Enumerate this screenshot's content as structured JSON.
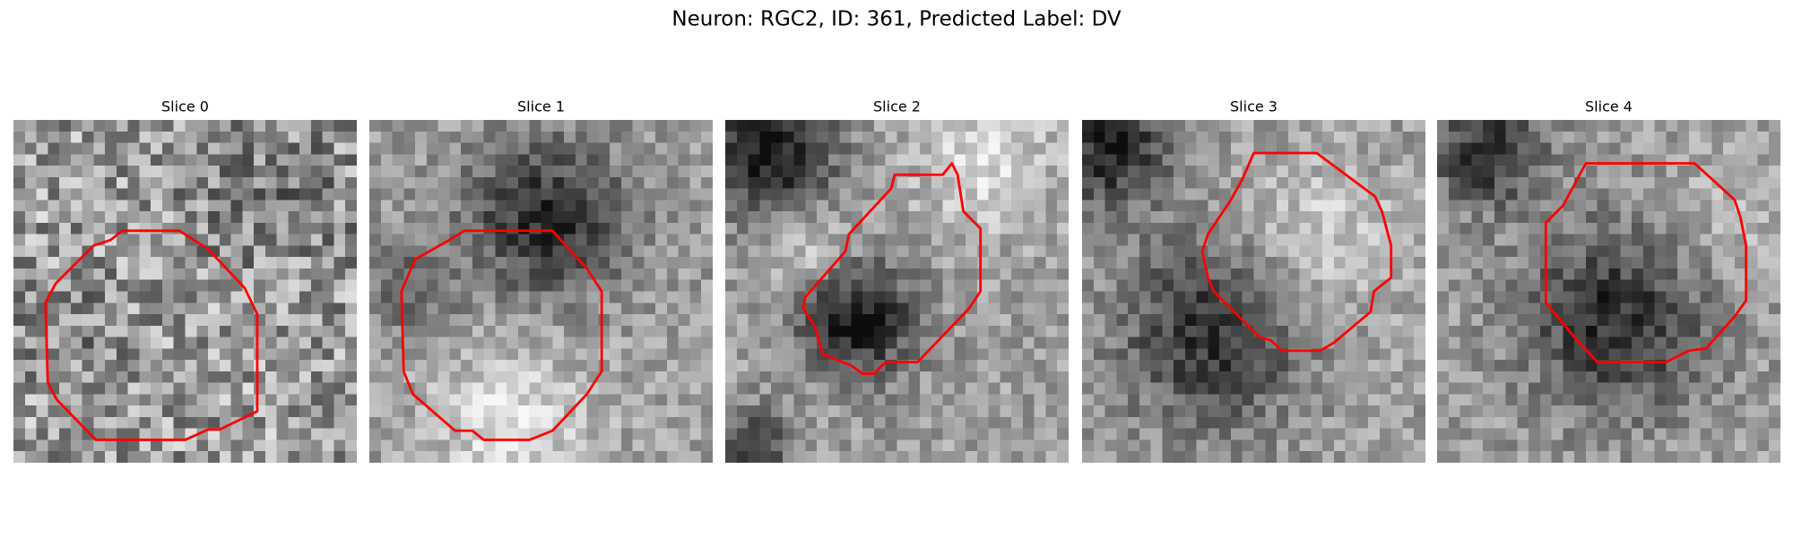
{
  "figure": {
    "title": "Neuron: RGC2, ID: 361, Predicted Label: DV",
    "panels": [
      {
        "title": "Slice 0"
      },
      {
        "title": "Slice 1"
      },
      {
        "title": "Slice 2"
      },
      {
        "title": "Slice 3"
      },
      {
        "title": "Slice 4"
      }
    ]
  }
}
